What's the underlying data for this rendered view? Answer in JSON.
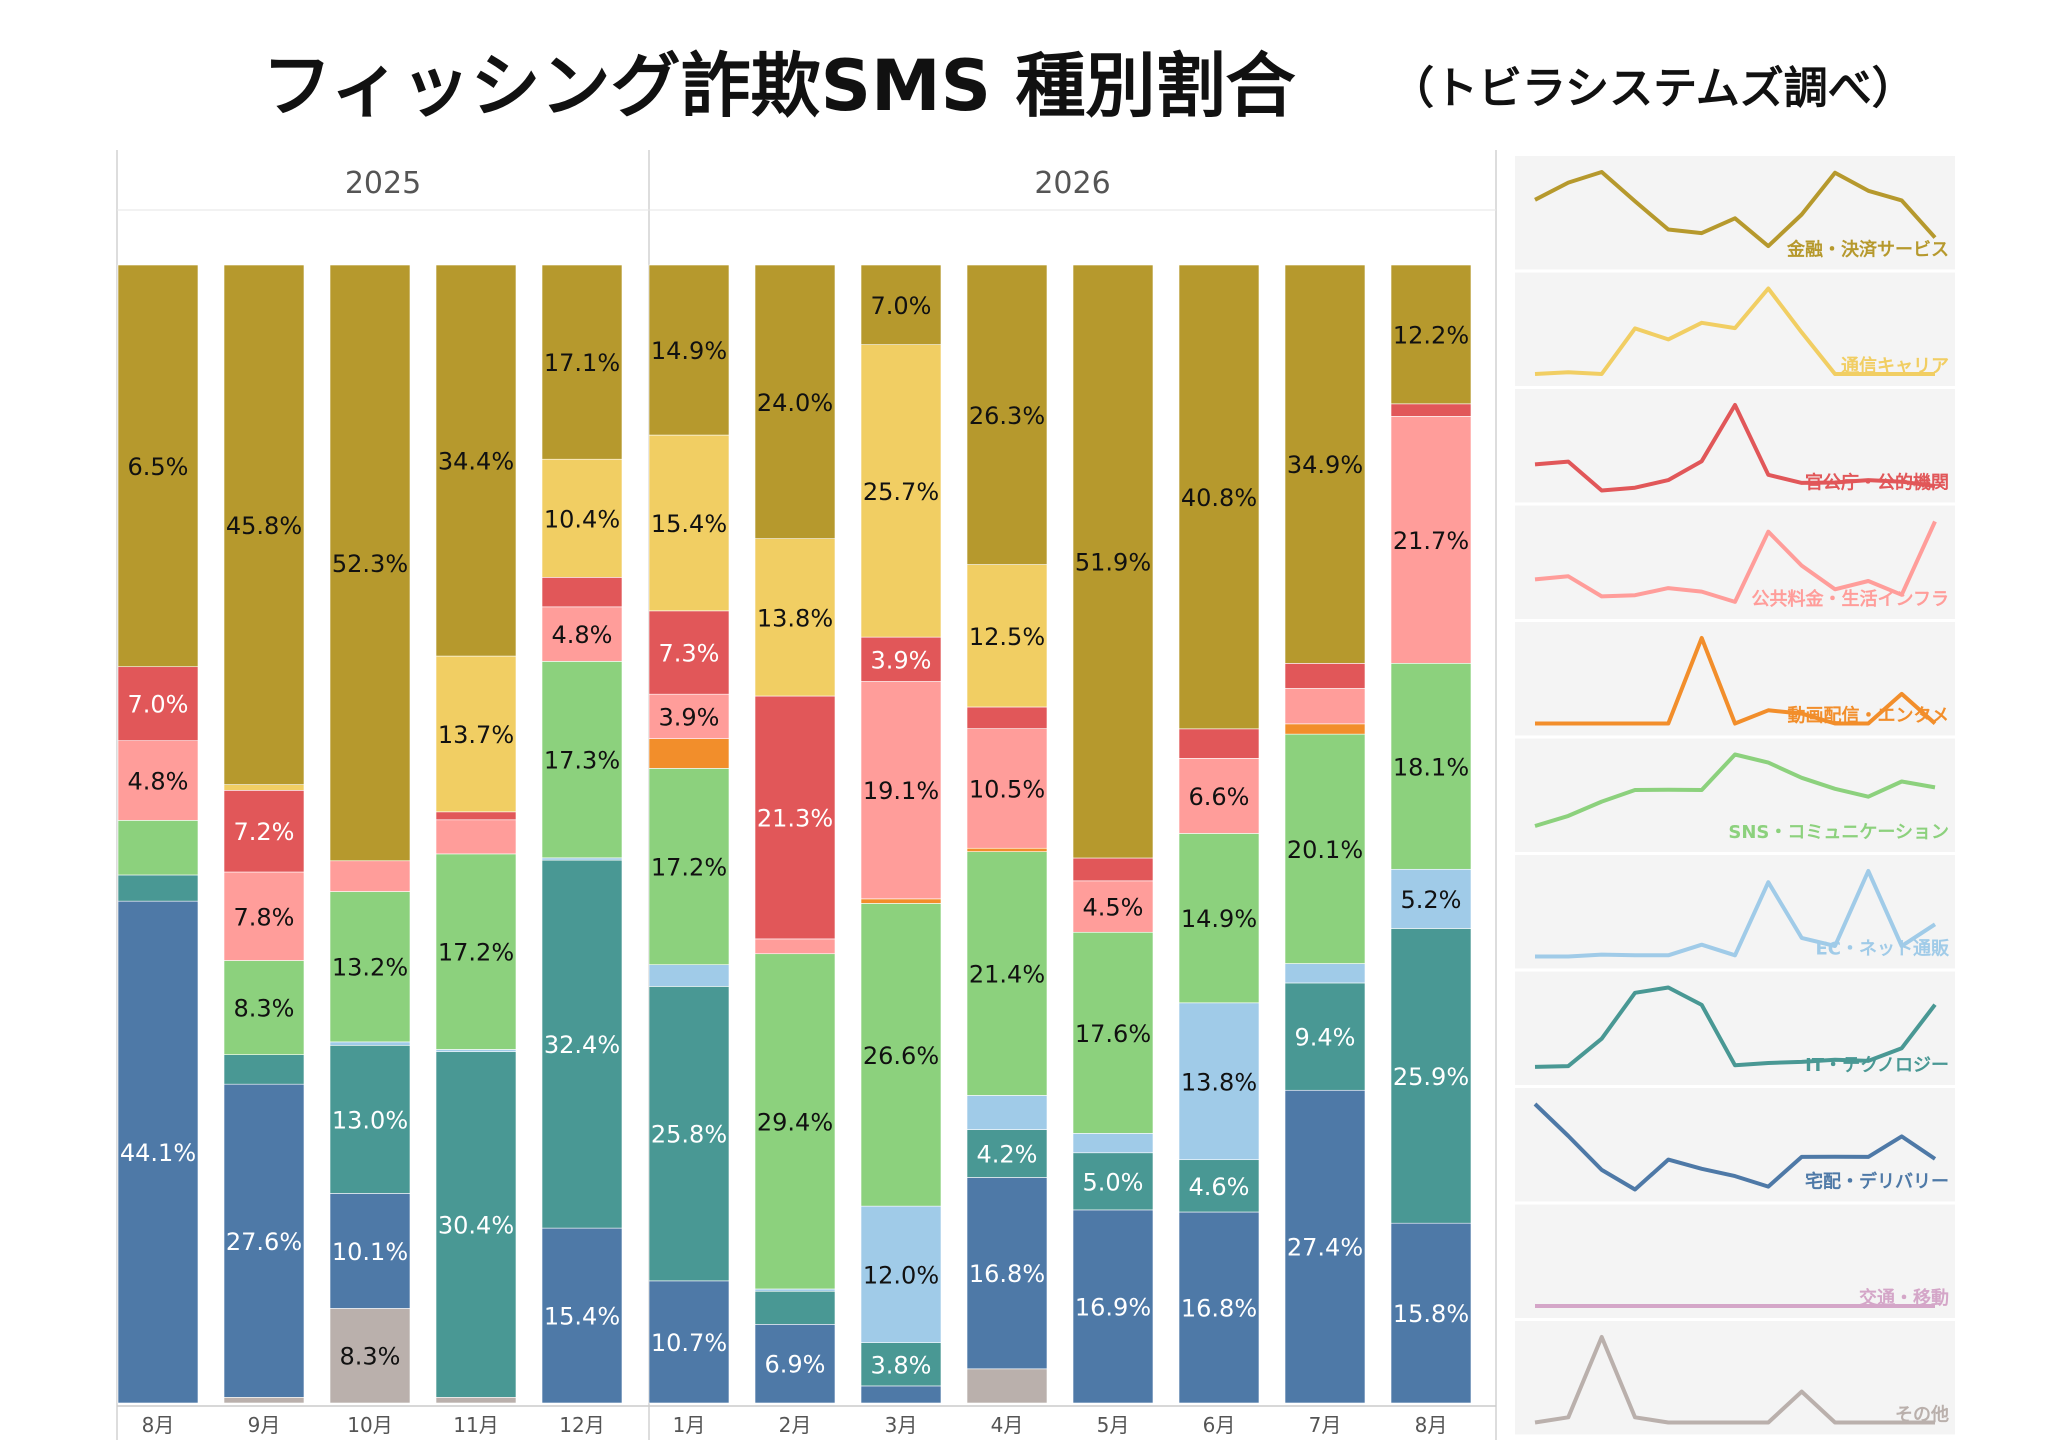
{
  "title": "フィッシング詐欺SMS 種別割合",
  "subtitle": "（トビラシステムズ調べ）",
  "chart_data": {
    "type": "bar",
    "stacked": true,
    "normalized": true,
    "groups": [
      {
        "label": "2025",
        "categories": [
          "8月",
          "9月",
          "10月",
          "11月",
          "12月"
        ]
      },
      {
        "label": "2026",
        "categories": [
          "1月",
          "2月",
          "3月",
          "4月",
          "5月",
          "6月",
          "7月",
          "8月"
        ]
      }
    ],
    "categories": [
      "8月",
      "9月",
      "10月",
      "11月",
      "12月",
      "1月",
      "2月",
      "3月",
      "4月",
      "5月",
      "6月",
      "7月",
      "8月"
    ],
    "series": [
      {
        "name": "その他",
        "color": "#bab0ac",
        "values": [
          0,
          0.5,
          8.3,
          0.5,
          0,
          0,
          0,
          0,
          3.0,
          0,
          0,
          0,
          0
        ]
      },
      {
        "name": "交通・移動",
        "color": "#d4a6c8",
        "values": [
          0,
          0,
          0,
          0,
          0,
          0,
          0,
          0,
          0,
          0,
          0,
          0,
          0
        ]
      },
      {
        "name": "宅配・デリバリー",
        "color": "#4e79a7",
        "values": [
          44.1,
          27.6,
          10.1,
          0,
          15.4,
          10.7,
          6.9,
          1.5,
          16.8,
          16.9,
          16.8,
          27.4,
          15.8
        ]
      },
      {
        "name": "IT・テクノロジー",
        "color": "#499894",
        "values": [
          2.3,
          2.6,
          13.0,
          30.4,
          32.4,
          25.8,
          2.9,
          3.8,
          4.2,
          5.0,
          4.6,
          9.4,
          25.9
        ]
      },
      {
        "name": "EC・ネット通販",
        "color": "#a0cbe8",
        "values": [
          0,
          0,
          0.3,
          0.2,
          0.2,
          1.9,
          0.2,
          12.0,
          3.0,
          1.7,
          13.8,
          1.7,
          5.2
        ]
      },
      {
        "name": "SNS・コミュニケーション",
        "color": "#8cd17d",
        "values": [
          4.8,
          8.3,
          13.2,
          17.2,
          17.3,
          17.2,
          29.4,
          26.6,
          21.4,
          17.6,
          14.9,
          20.1,
          18.1
        ]
      },
      {
        "name": "動画配信・エンタメ",
        "color": "#f28e2b",
        "values": [
          0,
          0,
          0,
          0,
          0,
          2.6,
          0,
          0.4,
          0.3,
          0,
          0,
          0.9,
          0
        ]
      },
      {
        "name": "公共料金・生活インフラ",
        "color": "#ff9d9a",
        "values": [
          7.0,
          7.8,
          2.7,
          3.0,
          4.8,
          3.9,
          1.3,
          19.1,
          10.5,
          4.5,
          6.6,
          3.1,
          21.7
        ]
      },
      {
        "name": "官公庁・公的機関",
        "color": "#e15759",
        "values": [
          6.5,
          7.2,
          0,
          0.7,
          2.6,
          7.3,
          21.3,
          3.9,
          1.9,
          2.0,
          2.6,
          2.2,
          1.1
        ]
      },
      {
        "name": "通信キャリア",
        "color": "#f1ce63",
        "values": [
          0,
          0.5,
          0,
          13.7,
          10.4,
          15.4,
          13.8,
          25.7,
          12.5,
          0,
          0,
          0,
          0
        ]
      },
      {
        "name": "金融・決済サービス",
        "color": "#b6992d",
        "values": [
          35.3,
          45.8,
          52.3,
          34.4,
          17.1,
          14.9,
          24.0,
          7.0,
          26.3,
          51.9,
          40.8,
          34.9,
          12.2
        ]
      }
    ],
    "data_labels": [
      [
        "44.1%",
        "",
        "4.8%",
        "7.0%",
        "6.5%",
        "",
        "35.3%"
      ],
      [
        "27.6%",
        "8.3%",
        "7.8%",
        "7.2%",
        "45.8%"
      ],
      [
        "8.3%",
        "10.1%",
        "13.0%",
        "13.2%",
        "52.3%"
      ],
      [
        "30.4%",
        "17.2%",
        "13.7%",
        "34.4%"
      ],
      [
        "15.4%",
        "32.4%",
        "17.3%",
        "4.8%",
        "10.4%",
        "17.1%"
      ],
      [
        "10.7%",
        "25.8%",
        "17.2%",
        "3.9%",
        "7.3%",
        "15.4%",
        "14.9%"
      ],
      [
        "6.9%",
        "29.4%",
        "21.3%",
        "13.8%",
        "24.0%"
      ],
      [
        "3.8%",
        "12.0%",
        "26.6%",
        "19.1%",
        "3.9%",
        "25.7%",
        "7.0%"
      ],
      [
        "16.8%",
        "4.2%",
        "21.4%",
        "10.5%",
        "12.5%",
        "26.3%"
      ],
      [
        "16.9%",
        "5.0%",
        "17.6%",
        "4.5%",
        "51.9%"
      ],
      [
        "16.8%",
        "4.6%",
        "13.8%",
        "14.9%",
        "6.6%",
        "40.8%"
      ],
      [
        "27.4%",
        "9.4%",
        "20.1%",
        "34.9%"
      ],
      [
        "15.8%",
        "25.9%",
        "5.2%",
        "18.1%",
        "21.7%",
        "12.2%"
      ]
    ],
    "ylim": [
      0,
      100
    ],
    "legend": "right-sparklines"
  }
}
